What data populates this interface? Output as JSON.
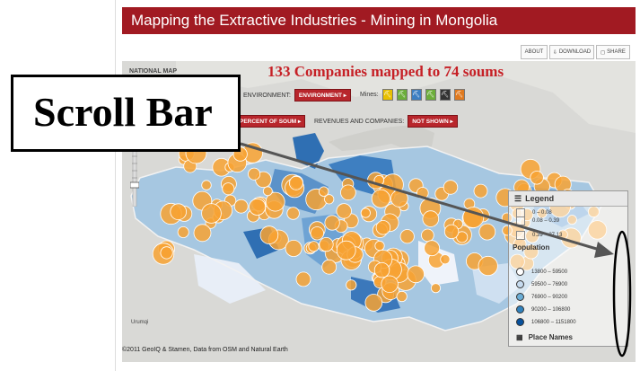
{
  "header": {
    "title": "Mapping the Extractive Industries - Mining in Mongolia"
  },
  "toolbar": {
    "about_label": "ABOUT",
    "download_label": "DOWNLOAD",
    "share_label": "SHARE"
  },
  "map": {
    "headline": "133 Companies mapped to 74 soums",
    "national_label": "NATIONAL MAP",
    "environment_label": "ENVIRONMENT:",
    "environment_value": "ENVIRONMENT",
    "mines_label": "Mines:",
    "percent_value": "PERCENT OF SOUM",
    "revenues_label": "REVENUES AND COMPANIES:",
    "revenues_value": "NOT SHOWN",
    "city_label": "Urumqi",
    "attribution": "©2011 GeoIQ & Stamen, Data from OSM and Natural Earth"
  },
  "legend": {
    "title": "Legend",
    "ranges": [
      "0 – 0.08",
      "0.08 – 0.39",
      "0.39 – 27.13"
    ],
    "population_title": "Population",
    "population_ranges": [
      "13800 – 59500",
      "59500 – 76900",
      "76900 – 90200",
      "90200 – 106800",
      "106800 – 1151800"
    ],
    "population_colors": [
      "#ffffff",
      "#c6dbef",
      "#6baed6",
      "#3182bd",
      "#08519c"
    ],
    "place_names": "Place Names"
  },
  "annotation": {
    "label": "Scroll Bar"
  },
  "colors": {
    "brand_red": "#a11a22",
    "bubble": "#f7a233",
    "arrow": "#555555"
  }
}
